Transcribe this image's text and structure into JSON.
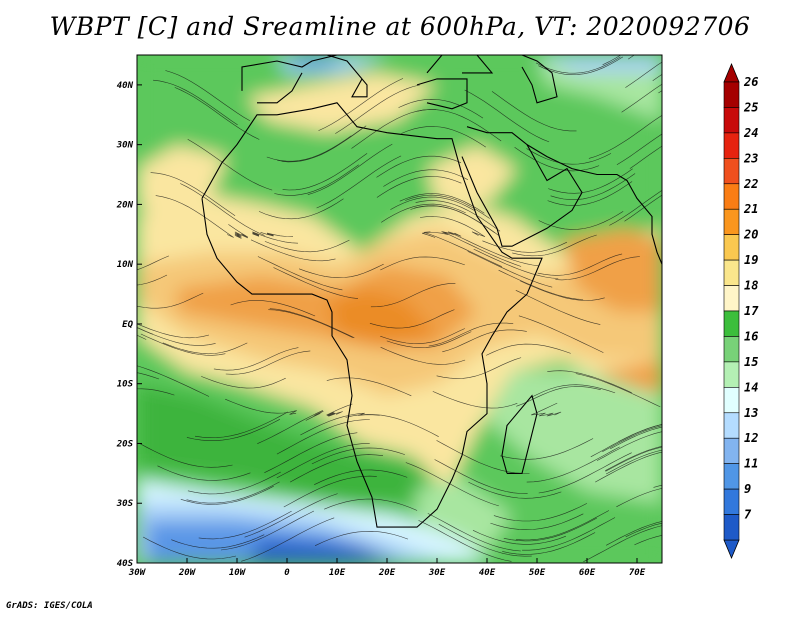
{
  "title": "WBPT [C] and Sreamline at 600hPa, VT: 2020092706",
  "credit": "GrADS: IGES/COLA",
  "map": {
    "lon_range": [
      -30,
      75
    ],
    "lat_range": [
      -40,
      45
    ],
    "lon_ticks": [
      {
        "value": -30,
        "label": "30W"
      },
      {
        "value": -20,
        "label": "20W"
      },
      {
        "value": -10,
        "label": "10W"
      },
      {
        "value": 0,
        "label": "0"
      },
      {
        "value": 10,
        "label": "10E"
      },
      {
        "value": 20,
        "label": "20E"
      },
      {
        "value": 30,
        "label": "30E"
      },
      {
        "value": 40,
        "label": "40E"
      },
      {
        "value": 50,
        "label": "50E"
      },
      {
        "value": 60,
        "label": "60E"
      },
      {
        "value": 70,
        "label": "70E"
      }
    ],
    "lat_ticks": [
      {
        "value": 40,
        "label": "40N"
      },
      {
        "value": 30,
        "label": "30N"
      },
      {
        "value": 20,
        "label": "20N"
      },
      {
        "value": 10,
        "label": "10N"
      },
      {
        "value": 0,
        "label": "EQ"
      },
      {
        "value": -10,
        "label": "10S"
      },
      {
        "value": -20,
        "label": "20S"
      },
      {
        "value": -30,
        "label": "30S"
      },
      {
        "value": -40,
        "label": "40S"
      }
    ]
  },
  "colorbar": {
    "levels": [
      {
        "label": "26",
        "color": "#a50000"
      },
      {
        "label": "25",
        "color": "#c80a0a"
      },
      {
        "label": "24",
        "color": "#e6230f"
      },
      {
        "label": "23",
        "color": "#f0501e"
      },
      {
        "label": "22",
        "color": "#fa7d14"
      },
      {
        "label": "21",
        "color": "#fa961e"
      },
      {
        "label": "20",
        "color": "#fac850"
      },
      {
        "label": "19",
        "color": "#fae68c"
      },
      {
        "label": "18",
        "color": "#fff5c8"
      },
      {
        "label": "17",
        "color": "#3cbe3c"
      },
      {
        "label": "16",
        "color": "#78d278"
      },
      {
        "label": "15",
        "color": "#b4f0b4"
      },
      {
        "label": "14",
        "color": "#e1ffff"
      },
      {
        "label": "13",
        "color": "#b4dcff"
      },
      {
        "label": "12",
        "color": "#82b4f0"
      },
      {
        "label": "11",
        "color": "#5096e6"
      },
      {
        "label": "9",
        "color": "#3278dc"
      },
      {
        "label": "7",
        "color": "#1e5ac8"
      }
    ],
    "top_arrow_color": "#a50000",
    "bottom_arrow_color": "#1e5ac8"
  },
  "fill_palette": {
    "cold_deep": "#2860c8",
    "cold": "#5a96e6",
    "cool": "#a8d0f8",
    "pale": "#d6f5ff",
    "green_light": "#a8e6a0",
    "green": "#5cc85c",
    "green_dark": "#3cb43c",
    "cream": "#fae6a0",
    "tan": "#f5c878",
    "orange": "#f0a046",
    "orange_deep": "#eb8c28"
  }
}
